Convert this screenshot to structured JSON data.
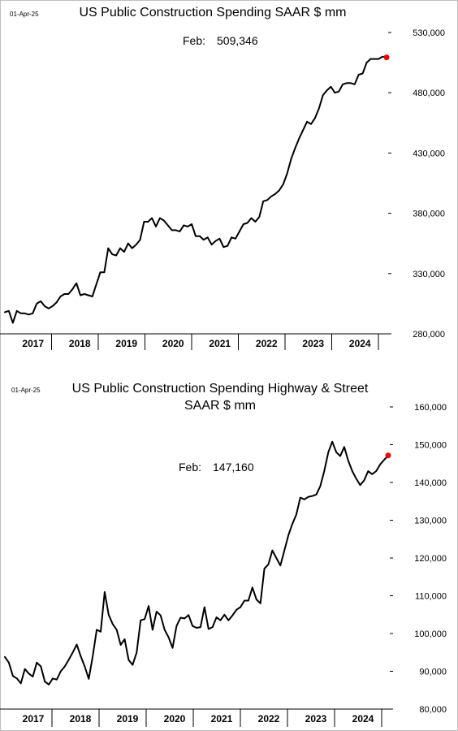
{
  "chart_data": [
    {
      "type": "line",
      "title": "US Public Construction Spending SAAR $ mm",
      "date_label": "01-Apr-25",
      "annotation": {
        "label": "Feb:",
        "value": "509,346"
      },
      "y_ticks": [
        "280,000",
        "330,000",
        "380,000",
        "430,000",
        "480,000",
        "530,000"
      ],
      "ylim": [
        280000,
        530000
      ],
      "x_tick_labels": [
        "2017",
        "2018",
        "2019",
        "2020",
        "2021",
        "2022",
        "2023",
        "2024"
      ],
      "last_point_color": "#ff0000",
      "series": [
        {
          "values": [
            298000,
            299000,
            289000,
            299000,
            297000,
            297000,
            296000,
            297000,
            305000,
            307000,
            303000,
            301000,
            303000,
            306000,
            311000,
            313000,
            313000,
            317000,
            322000,
            312000,
            313000,
            312000,
            311000,
            321000,
            331000,
            331000,
            351000,
            346000,
            345000,
            351000,
            348000,
            355000,
            351000,
            354000,
            358000,
            373000,
            373000,
            376000,
            369000,
            376000,
            374000,
            370000,
            366000,
            366000,
            365000,
            370000,
            369000,
            371000,
            361000,
            361000,
            358000,
            360000,
            354000,
            357000,
            359000,
            352000,
            353000,
            360000,
            359000,
            365000,
            371000,
            372000,
            376000,
            373000,
            377000,
            390000,
            391000,
            394000,
            396000,
            399000,
            404000,
            413000,
            425000,
            434000,
            442000,
            449000,
            456000,
            454000,
            459000,
            467000,
            478000,
            482000,
            485000,
            480000,
            481000,
            487000,
            488000,
            488000,
            487000,
            495000,
            496000,
            505000,
            508000,
            508000,
            508000,
            510000,
            509346
          ]
        }
      ]
    },
    {
      "type": "line",
      "title": "US Public Construction Spending Highway & Street SAAR $ mm",
      "title_lines": [
        "US Public Construction Spending Highway & Street",
        "SAAR $ mm"
      ],
      "date_label": "01-Apr-25",
      "annotation": {
        "label": "Feb:",
        "value": "147,160"
      },
      "y_ticks": [
        "80,000",
        "90,000",
        "100,000",
        "110,000",
        "120,000",
        "130,000",
        "140,000",
        "150,000",
        "160,000"
      ],
      "ylim": [
        80000,
        160000
      ],
      "x_tick_labels": [
        "2017",
        "2018",
        "2019",
        "2020",
        "2021",
        "2022",
        "2023",
        "2024"
      ],
      "last_point_color": "#ff0000",
      "series": [
        {
          "values": [
            93800,
            92300,
            88800,
            88100,
            86800,
            90600,
            89400,
            88600,
            92300,
            91300,
            87300,
            86500,
            88100,
            87800,
            90000,
            91300,
            93100,
            95000,
            97100,
            94000,
            91300,
            88000,
            94000,
            101000,
            100500,
            111000,
            105000,
            102500,
            101000,
            97000,
            98500,
            93000,
            91700,
            95000,
            103500,
            103800,
            107300,
            101000,
            105800,
            104800,
            101000,
            99000,
            96200,
            102000,
            104200,
            104000,
            104900,
            102000,
            101500,
            101700,
            107000,
            101200,
            101700,
            104300,
            103500,
            105000,
            103500,
            104800,
            106300,
            107000,
            108700,
            108700,
            112200,
            109000,
            108000,
            117200,
            118300,
            122000,
            120000,
            118000,
            122000,
            126000,
            129000,
            131500,
            136000,
            135500,
            136200,
            136400,
            136800,
            139000,
            143000,
            148000,
            150800,
            148000,
            147000,
            149400,
            145800,
            143000,
            141000,
            139300,
            140600,
            143000,
            142200,
            143000,
            144800,
            146000,
            147160
          ]
        }
      ]
    }
  ]
}
